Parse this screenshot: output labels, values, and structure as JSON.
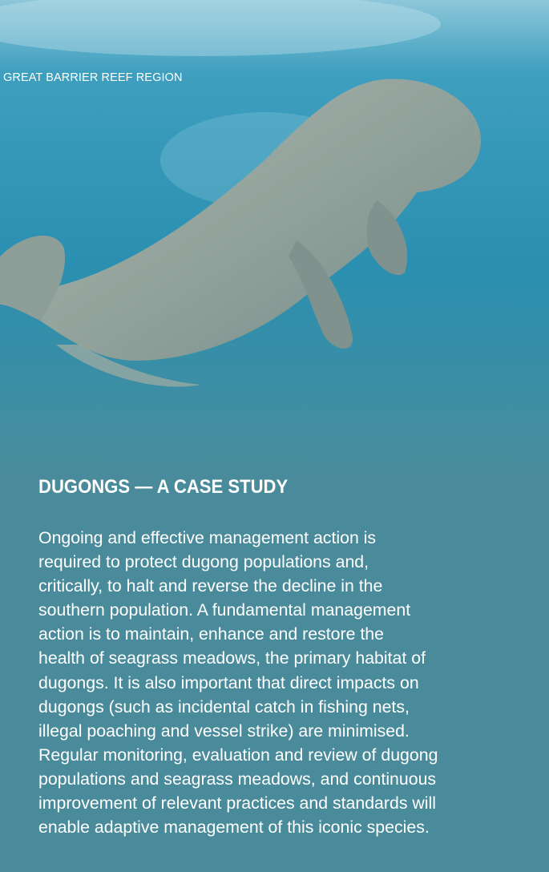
{
  "header": {
    "region": "GREAT BARRIER REEF REGION"
  },
  "article": {
    "title": "DUGONGS — A CASE STUDY",
    "lines": [
      "Ongoing and effective management action is",
      "required to protect dugong populations and,",
      "critically, to halt and reverse the decline in the",
      "southern population. A fundamental management",
      "action is to maintain, enhance and restore the",
      "health of seagrass meadows, the primary habitat of",
      "dugongs. It is also important that direct impacts on",
      "dugongs (such as incidental catch in fishing nets,",
      "illegal poaching and vessel strike) are minimised.",
      "Regular monitoring, evaluation and review of dugong",
      "populations and seagrass meadows, and continuous",
      "improvement of relevant practices and standards will",
      "enable adaptive management of this iconic species."
    ]
  }
}
